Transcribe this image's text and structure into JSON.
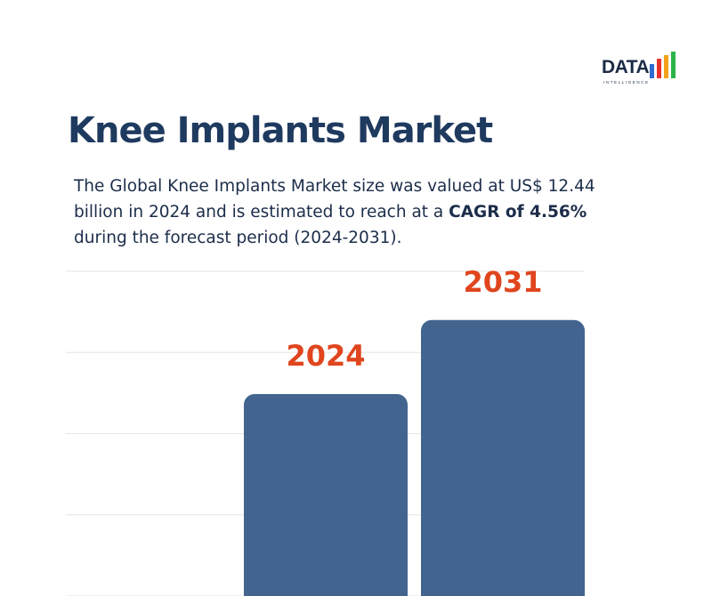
{
  "brand": {
    "name": "DATA",
    "tagline": "INTELLIGENCE",
    "bar_colors": [
      "#2f6bd1",
      "#e8332b",
      "#f2a21a",
      "#2bb34a"
    ]
  },
  "title": "Knee Implants Market",
  "description": {
    "part1": "The Global Knee Implants Market size was valued at US$ 12.44 billion in 2024 and is estimated to reach at a ",
    "highlight": "CAGR of 4.56%",
    "part2": " during the forecast period (2024-2031)."
  },
  "chart_data": {
    "type": "bar",
    "categories": [
      "2024",
      "2031"
    ],
    "values": [
      12.44,
      17.0
    ],
    "ylim": [
      0,
      20
    ],
    "grid": true,
    "bar_color": "#42648f",
    "label_color": "#e0451e",
    "gridline_color": "#e6e6e6"
  }
}
